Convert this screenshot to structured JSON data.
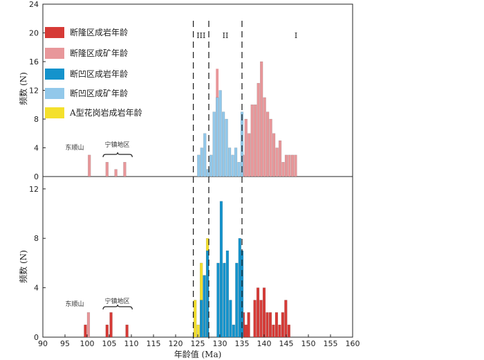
{
  "chart_data": {
    "type": "bar",
    "xlabel": "年龄值 (Ma)",
    "xlim": [
      90,
      160
    ],
    "xticks": [
      90,
      95,
      100,
      105,
      110,
      115,
      120,
      125,
      130,
      135,
      140,
      145,
      150,
      155,
      160
    ],
    "boundaries": [
      124,
      127.5,
      135
    ],
    "zones": [
      "III",
      "II",
      "I"
    ],
    "legend": [
      {
        "label": "断隆区成岩年龄",
        "color": "#d63a36"
      },
      {
        "label": "断隆区成矿年龄",
        "color": "#e8979a"
      },
      {
        "label": "断凹区成岩年龄",
        "color": "#1493cc"
      },
      {
        "label": "断凹区成矿年龄",
        "color": "#92c8ea"
      },
      {
        "label": "A型花岗岩成岩年龄",
        "color": "#f4e02c"
      }
    ],
    "annotations": {
      "dongshunshan": "东顺山",
      "ningzhen": "宁镇地区"
    },
    "panels": [
      {
        "name": "top",
        "ylabel": "频数 (N)",
        "ylim": [
          0,
          24
        ],
        "yticks": [
          0,
          4,
          8,
          12,
          16,
          20,
          24
        ],
        "series": [
          {
            "name": "断隆区成矿年龄",
            "color": "#e8979a",
            "points": [
              [
                100.5,
                3
              ],
              [
                104.5,
                2
              ],
              [
                106.5,
                1
              ],
              [
                108.5,
                2
              ],
              [
                135.2,
                3
              ],
              [
                135.9,
                8
              ],
              [
                136.6,
                6
              ],
              [
                137.3,
                10
              ],
              [
                138.0,
                10
              ],
              [
                138.7,
                13
              ],
              [
                139.4,
                16
              ],
              [
                140.1,
                11
              ],
              [
                140.8,
                9
              ],
              [
                141.5,
                8
              ],
              [
                142.2,
                6
              ],
              [
                142.9,
                4
              ],
              [
                143.6,
                5
              ],
              [
                144.3,
                2
              ],
              [
                145.0,
                3
              ],
              [
                145.7,
                3
              ],
              [
                146.4,
                3
              ],
              [
                147.1,
                3
              ]
            ]
          },
          {
            "name": "断凹区成矿年龄",
            "color": "#92c8ea",
            "points": [
              [
                125.2,
                3
              ],
              [
                125.9,
                4
              ],
              [
                126.6,
                6
              ],
              [
                127.3,
                1
              ],
              [
                128.0,
                3
              ],
              [
                128.7,
                9
              ],
              [
                129.4,
                11
              ],
              [
                130.1,
                12
              ],
              [
                130.8,
                9
              ],
              [
                131.5,
                8
              ],
              [
                132.2,
                4
              ],
              [
                132.9,
                3
              ],
              [
                133.6,
                4
              ],
              [
                134.3,
                2
              ],
              [
                135.0,
                9
              ]
            ]
          }
        ],
        "overlays": [
          {
            "name": "断隆区成矿年龄",
            "color": "#e8979a",
            "points": [
              [
                129.4,
                15
              ]
            ]
          }
        ]
      },
      {
        "name": "bottom",
        "ylabel": "频数 (N)",
        "ylim": [
          0,
          13
        ],
        "yticks": [
          0,
          4,
          8,
          12
        ],
        "series": [
          {
            "name": "断隆区成岩年龄",
            "color": "#d63a36",
            "points": [
              [
                99.6,
                1
              ],
              [
                104.5,
                1
              ],
              [
                105.4,
                2
              ],
              [
                109.0,
                1
              ],
              [
                135.3,
                2
              ],
              [
                135.9,
                1
              ],
              [
                136.5,
                2
              ],
              [
                137.9,
                3
              ],
              [
                138.6,
                4
              ],
              [
                139.3,
                3
              ],
              [
                140.0,
                4
              ],
              [
                140.7,
                2
              ],
              [
                141.4,
                2
              ],
              [
                142.1,
                1
              ],
              [
                142.8,
                2
              ],
              [
                143.5,
                1
              ],
              [
                144.2,
                2
              ],
              [
                144.9,
                3
              ],
              [
                145.6,
                1
              ]
            ]
          },
          {
            "name": "断隆区成矿年龄",
            "color": "#e8979a",
            "points": [
              [
                100.3,
                2
              ]
            ]
          },
          {
            "name": "A型花岗岩成岩年龄",
            "color": "#f4e02c",
            "points": [
              [
                124.4,
                3
              ],
              [
                125.1,
                1
              ],
              [
                125.8,
                6
              ],
              [
                126.5,
                5
              ],
              [
                127.2,
                8
              ]
            ]
          },
          {
            "name": "断凹区成岩年龄",
            "color": "#1493cc",
            "points": [
              [
                125.8,
                3
              ],
              [
                126.5,
                5
              ],
              [
                127.2,
                7
              ],
              [
                129.6,
                6
              ],
              [
                130.3,
                11
              ],
              [
                131.0,
                6
              ],
              [
                131.7,
                7
              ],
              [
                132.4,
                3
              ],
              [
                133.1,
                1
              ],
              [
                133.8,
                6
              ],
              [
                134.5,
                8
              ],
              [
                135.0,
                7
              ]
            ]
          }
        ]
      }
    ]
  }
}
